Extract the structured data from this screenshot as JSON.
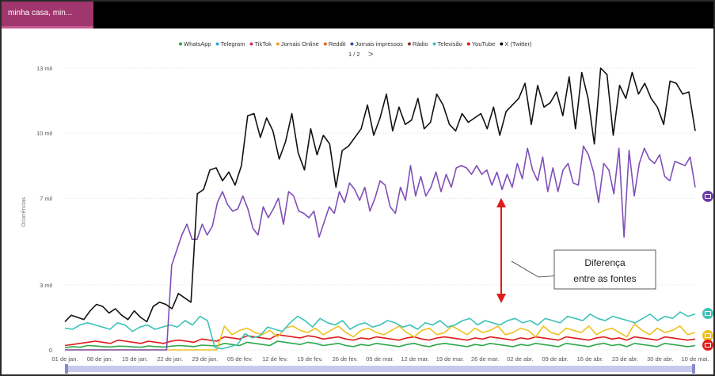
{
  "tab": {
    "label": "minha casa, min..."
  },
  "legend": {
    "items": [
      {
        "label": "WhatsApp",
        "color": "#2ca84a"
      },
      {
        "label": "Telegram",
        "color": "#3aa3d8"
      },
      {
        "label": "TikTok",
        "color": "#d1307a"
      },
      {
        "label": "Jornais Online",
        "color": "#f0a020"
      },
      {
        "label": "Reddit",
        "color": "#e86420"
      },
      {
        "label": "Jornais impressos",
        "color": "#3b4fa8"
      },
      {
        "label": "Rádio",
        "color": "#7a3a2a"
      },
      {
        "label": "Televisão",
        "color": "#3ec3b8"
      },
      {
        "label": "YouTube",
        "color": "#e01b1b"
      },
      {
        "label": "X (Twitter)",
        "color": "#111111"
      }
    ],
    "page": "1 / 2",
    "next_icon": "chevron-right-icon"
  },
  "annotation": {
    "line1": "Diferença",
    "line2": "entre as fontes",
    "arrow_color": "#e01b1b"
  },
  "side_icons": [
    {
      "name": "briefcase-icon",
      "color": "#6a3aa8"
    },
    {
      "name": "tv-icon",
      "color": "#3ec3b8"
    },
    {
      "name": "newspaper-icon",
      "color": "#f0c020"
    },
    {
      "name": "youtube-icon",
      "color": "#e01b1b"
    }
  ],
  "chart_data": {
    "type": "line",
    "title": "",
    "xlabel": "",
    "ylabel": "Ocorrências",
    "ylim": [
      0,
      13000
    ],
    "yticks": [
      0,
      3000,
      7000,
      10000,
      13000
    ],
    "ytick_labels": [
      "0",
      "3 mil",
      "7 mil",
      "10 mil",
      "13 mil"
    ],
    "xtick_labels": [
      "01 de jan.",
      "08 de jan.",
      "15 de jan.",
      "22 de jan.",
      "29 de jan.",
      "05 de fev.",
      "12 de fev.",
      "19 de fev.",
      "26 de fev.",
      "05 de mar.",
      "12 de mar.",
      "19 de mar.",
      "26 de mar.",
      "02 de abr.",
      "09 de abr.",
      "16 de abr.",
      "23 de abr.",
      "30 de abr.",
      "10 de mai."
    ],
    "grid": true,
    "legend_position": "top",
    "series": [
      {
        "name": "X (Twitter)",
        "color": "#111111",
        "values": [
          1300,
          1600,
          1500,
          1400,
          1800,
          2100,
          2000,
          1700,
          1900,
          1600,
          1400,
          1800,
          1500,
          1300,
          2000,
          2200,
          2100,
          1900,
          2600,
          2400,
          2200,
          7200,
          7400,
          8300,
          8400,
          7800,
          8200,
          7600,
          8500,
          10800,
          10900,
          9800,
          10700,
          10100,
          8800,
          9600,
          10900,
          9100,
          8300,
          10200,
          9000,
          9900,
          9500,
          7500,
          9200,
          9400,
          9800,
          10200,
          11300,
          9900,
          10700,
          11800,
          10100,
          11200,
          10400,
          10600,
          11600,
          10200,
          10500,
          11800,
          11300,
          10400,
          10100,
          10900,
          10500,
          10700,
          10900,
          10200,
          11200,
          9900,
          11000,
          11300,
          11600,
          12300,
          10400,
          12200,
          11200,
          11400,
          11900,
          10800,
          12600,
          10200,
          12800,
          11600,
          9500,
          13000,
          12700,
          9900,
          12200,
          11600,
          12800,
          11800,
          12300,
          11600,
          11200,
          10400,
          12400,
          12300,
          11800,
          11900,
          10100
        ]
      },
      {
        "name": "Jornais impressos",
        "color": "#7f4fb8",
        "values": [
          0,
          0,
          0,
          0,
          0,
          0,
          0,
          0,
          0,
          0,
          0,
          0,
          0,
          0,
          0,
          0,
          0,
          0,
          0,
          0,
          0,
          3900,
          4600,
          5300,
          5800,
          5100,
          5100,
          5800,
          5300,
          5700,
          6800,
          7300,
          6700,
          6400,
          6500,
          7100,
          6500,
          5600,
          5300,
          6600,
          6100,
          6500,
          7000,
          5800,
          7300,
          7100,
          6400,
          6300,
          6100,
          6400,
          5200,
          5900,
          6600,
          6300,
          7300,
          6800,
          7700,
          7400,
          6900,
          7500,
          6400,
          7000,
          7800,
          7600,
          6600,
          6300,
          7500,
          6900,
          8500,
          7100,
          8000,
          7100,
          7500,
          8200,
          7300,
          8100,
          7500,
          8400,
          8500,
          8400,
          8100,
          8500,
          8100,
          8300,
          7600,
          8200,
          7400,
          8100,
          7500,
          8600,
          7900,
          9300,
          8300,
          7800,
          8900,
          7300,
          8400,
          7300,
          8300,
          8600,
          7700,
          7600,
          9400,
          9000,
          8200,
          6800,
          8600,
          8300,
          7200,
          9300,
          5200,
          9200,
          7100,
          8600,
          9300,
          8800,
          8600,
          9000,
          8000,
          7800,
          8700,
          8600,
          8500,
          8900,
          7500
        ]
      },
      {
        "name": "Televisão",
        "color": "#3ec3b8",
        "values": [
          1000,
          950,
          1150,
          1250,
          1150,
          1050,
          950,
          1250,
          1150,
          850,
          1050,
          1150,
          950,
          1050,
          1150,
          1050,
          1350,
          1150,
          1550,
          1350,
          100,
          50,
          150,
          250,
          750,
          550,
          650,
          1050,
          950,
          850,
          1250,
          1550,
          1350,
          1050,
          1450,
          1250,
          1150,
          1350,
          950,
          1150,
          1250,
          1050,
          1150,
          1350,
          1250,
          1050,
          1150,
          950,
          1250,
          1150,
          1350,
          1050,
          1150,
          1350,
          1450,
          1150,
          1350,
          1250,
          1150,
          1350,
          1450,
          1250,
          1350,
          1150,
          1450,
          1350,
          1250,
          1550,
          1450,
          1350,
          1650,
          1450,
          1350,
          1550,
          1450,
          1350,
          1250,
          1450,
          1650,
          1350,
          1550,
          1450,
          1750,
          1550,
          1650
        ]
      },
      {
        "name": "Jornais Online",
        "color": "#f0c020",
        "values": [
          0,
          0,
          0,
          0,
          0,
          0,
          0,
          0,
          0,
          0,
          0,
          0,
          0,
          0,
          0,
          0,
          0,
          0,
          0,
          0,
          0,
          1100,
          700,
          900,
          1000,
          800,
          700,
          900,
          600,
          1000,
          1100,
          900,
          800,
          1000,
          700,
          900,
          1100,
          800,
          600,
          900,
          1000,
          800,
          700,
          900,
          1100,
          800,
          600,
          900,
          1000,
          700,
          800,
          1100,
          900,
          700,
          1000,
          800,
          900,
          1100,
          700,
          800,
          1000,
          900,
          600,
          1100,
          800,
          700,
          1000,
          900,
          800,
          1100,
          700,
          900,
          1000,
          800,
          600,
          1200,
          900,
          700,
          1000,
          800,
          900,
          1100,
          700,
          800
        ]
      },
      {
        "name": "YouTube",
        "color": "#e01b1b",
        "values": [
          200,
          250,
          300,
          350,
          400,
          350,
          300,
          450,
          400,
          350,
          300,
          400,
          350,
          300,
          400,
          450,
          400,
          350,
          500,
          450,
          400,
          600,
          550,
          500,
          650,
          600,
          550,
          500,
          700,
          650,
          600,
          550,
          650,
          600,
          500,
          550,
          600,
          500,
          450,
          550,
          500,
          600,
          550,
          500,
          450,
          550,
          600,
          500,
          450,
          550,
          600,
          550,
          500,
          450,
          550,
          500,
          600,
          550,
          500,
          450,
          550,
          500,
          600,
          550,
          500,
          450,
          600,
          550,
          500,
          450,
          550,
          600,
          500,
          550,
          450,
          600,
          550,
          500,
          450,
          600,
          550,
          500,
          450,
          500
        ]
      },
      {
        "name": "TikTok",
        "color": "#2ca84a",
        "values": [
          100,
          150,
          120,
          200,
          180,
          150,
          130,
          170,
          160,
          140,
          120,
          180,
          150,
          130,
          170,
          200,
          180,
          150,
          220,
          200,
          180,
          300,
          250,
          200,
          350,
          300,
          250,
          200,
          400,
          350,
          300,
          250,
          350,
          300,
          200,
          250,
          300,
          200,
          150,
          250,
          200,
          300,
          250,
          200,
          150,
          250,
          300,
          200,
          150,
          250,
          300,
          250,
          200,
          150,
          250,
          200,
          300,
          250,
          200,
          150,
          250,
          200,
          300,
          250,
          200,
          150,
          300,
          250,
          200,
          150,
          250,
          300,
          200,
          250,
          150,
          300,
          250,
          200,
          150,
          300,
          250,
          200,
          150,
          200
        ]
      }
    ]
  }
}
